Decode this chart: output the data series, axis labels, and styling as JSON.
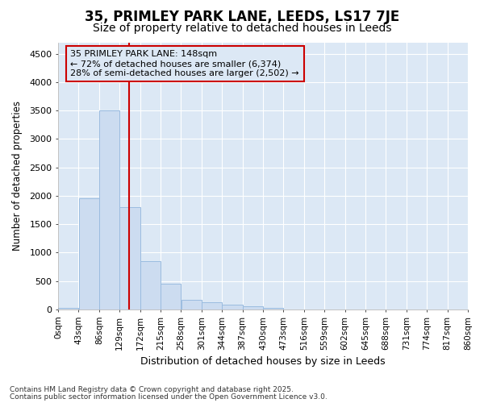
{
  "title1": "35, PRIMLEY PARK LANE, LEEDS, LS17 7JE",
  "title2": "Size of property relative to detached houses in Leeds",
  "xlabel": "Distribution of detached houses by size in Leeds",
  "ylabel": "Number of detached properties",
  "bin_labels": [
    "0sqm",
    "43sqm",
    "86sqm",
    "129sqm",
    "172sqm",
    "215sqm",
    "258sqm",
    "301sqm",
    "344sqm",
    "387sqm",
    "430sqm",
    "473sqm",
    "516sqm",
    "559sqm",
    "602sqm",
    "645sqm",
    "688sqm",
    "731sqm",
    "774sqm",
    "817sqm",
    "860sqm"
  ],
  "bin_edges": [
    0,
    43,
    86,
    129,
    172,
    215,
    258,
    301,
    344,
    387,
    430,
    473,
    516,
    559,
    602,
    645,
    688,
    731,
    774,
    817,
    860
  ],
  "bar_heights": [
    30,
    1950,
    3500,
    1800,
    850,
    450,
    175,
    130,
    80,
    50,
    30,
    0,
    0,
    0,
    0,
    0,
    0,
    0,
    0,
    0
  ],
  "bar_color": "#ccdcf0",
  "bar_edge_color": "#9bbce0",
  "property_size": 148,
  "vline_color": "#cc0000",
  "annotation_line1": "35 PRIMLEY PARK LANE: 148sqm",
  "annotation_line2": "← 72% of detached houses are smaller (6,374)",
  "annotation_line3": "28% of semi-detached houses are larger (2,502) →",
  "annotation_box_color": "#cc0000",
  "ylim": [
    0,
    4700
  ],
  "yticks": [
    0,
    500,
    1000,
    1500,
    2000,
    2500,
    3000,
    3500,
    4000,
    4500
  ],
  "footer1": "Contains HM Land Registry data © Crown copyright and database right 2025.",
  "footer2": "Contains public sector information licensed under the Open Government Licence v3.0.",
  "bg_color": "#ffffff",
  "plot_bg_color": "#dce8f5",
  "grid_color": "#ffffff",
  "title1_fontsize": 12,
  "title2_fontsize": 10
}
